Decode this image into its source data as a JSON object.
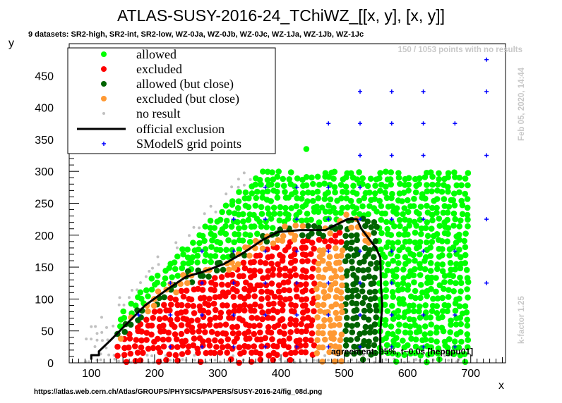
{
  "chart_data": {
    "type": "scatter",
    "title": "ATLAS-SUSY-2016-24_TChiWZ_[[x, y], [x, y]]",
    "subtitle": "9 datasets: SR2-high, SR2-int, SR2-low, WZ-0Ja, WZ-0Jb, WZ-0Jc, WZ-1Ja, WZ-1Jb, WZ-1Jc",
    "xlabel": "x",
    "ylabel": "y",
    "xlim": [
      65,
      755
    ],
    "ylim": [
      0,
      500
    ],
    "x_ticks": [
      100,
      200,
      300,
      400,
      500,
      600,
      700
    ],
    "y_ticks": [
      0,
      50,
      100,
      150,
      200,
      250,
      300,
      350,
      400,
      450
    ],
    "grid": false,
    "legend_position": "top-left",
    "legend": {
      "allowed": "allowed",
      "excluded": "excluded",
      "allowed_close": "allowed (but close)",
      "excluded_close": "excluded (but close)",
      "no_result": "no result",
      "official": "official exclusion",
      "grid": "SModelS grid points"
    },
    "colors": {
      "allowed": "#00ff00",
      "excluded": "#ff0000",
      "allowed_close": "#006400",
      "excluded_close": "#ff9933",
      "no_result": "#c0c0c0",
      "official": "#000000",
      "grid": "#0000ff"
    },
    "note_no_results": "150 / 1053 points with no results",
    "date": "Feb 05, 2020, 14:44",
    "kfactor": "k-factor 1.25",
    "agreement": "agreement: 95%, t~0.0s [hepgpu01]",
    "source_url": "https://atlas.web.cern.ch/Atlas/GROUPS/PHYSICS/PAPERS/SUSY-2016-24/fig_08d.png",
    "official_exclusion": [
      [
        100,
        5
      ],
      [
        100,
        12
      ],
      [
        112,
        12
      ],
      [
        112,
        18
      ],
      [
        130,
        35
      ],
      [
        155,
        60
      ],
      [
        185,
        90
      ],
      [
        220,
        115
      ],
      [
        250,
        135
      ],
      [
        275,
        142
      ],
      [
        310,
        155
      ],
      [
        340,
        172
      ],
      [
        370,
        192
      ],
      [
        395,
        205
      ],
      [
        430,
        208
      ],
      [
        470,
        208
      ],
      [
        505,
        225
      ],
      [
        520,
        225
      ],
      [
        527,
        210
      ],
      [
        550,
        180
      ],
      [
        557,
        165
      ],
      [
        558,
        120
      ],
      [
        560,
        90
      ],
      [
        557,
        50
      ],
      [
        557,
        0
      ]
    ],
    "grid_points": [
      [
        725,
        475
      ],
      [
        525,
        425
      ],
      [
        575,
        425
      ],
      [
        625,
        425
      ],
      [
        725,
        425
      ],
      [
        475,
        375
      ],
      [
        525,
        375
      ],
      [
        575,
        375
      ],
      [
        625,
        375
      ],
      [
        675,
        375
      ],
      [
        525,
        325
      ],
      [
        575,
        325
      ],
      [
        625,
        325
      ],
      [
        725,
        325
      ],
      [
        375,
        275
      ],
      [
        425,
        275
      ],
      [
        475,
        275
      ],
      [
        525,
        275
      ],
      [
        325,
        225
      ],
      [
        375,
        225
      ],
      [
        425,
        225
      ],
      [
        475,
        225
      ],
      [
        525,
        225
      ],
      [
        575,
        225
      ],
      [
        625,
        225
      ],
      [
        725,
        225
      ],
      [
        275,
        175
      ],
      [
        325,
        175
      ],
      [
        375,
        175
      ],
      [
        425,
        175
      ],
      [
        475,
        175
      ],
      [
        525,
        175
      ],
      [
        575,
        175
      ],
      [
        625,
        175
      ],
      [
        675,
        175
      ],
      [
        225,
        125
      ],
      [
        275,
        125
      ],
      [
        325,
        125
      ],
      [
        375,
        125
      ],
      [
        425,
        125
      ],
      [
        475,
        125
      ],
      [
        525,
        125
      ],
      [
        575,
        125
      ],
      [
        725,
        125
      ],
      [
        175,
        75
      ],
      [
        225,
        75
      ],
      [
        275,
        75
      ],
      [
        325,
        75
      ],
      [
        375,
        75
      ],
      [
        425,
        75
      ],
      [
        475,
        75
      ],
      [
        525,
        75
      ],
      [
        575,
        75
      ],
      [
        625,
        75
      ],
      [
        675,
        75
      ],
      [
        225,
        25
      ],
      [
        275,
        25
      ],
      [
        325,
        25
      ],
      [
        375,
        25
      ],
      [
        425,
        25
      ],
      [
        475,
        25
      ],
      [
        525,
        25
      ],
      [
        575,
        25
      ],
      [
        625,
        25
      ],
      [
        675,
        25
      ]
    ]
  }
}
